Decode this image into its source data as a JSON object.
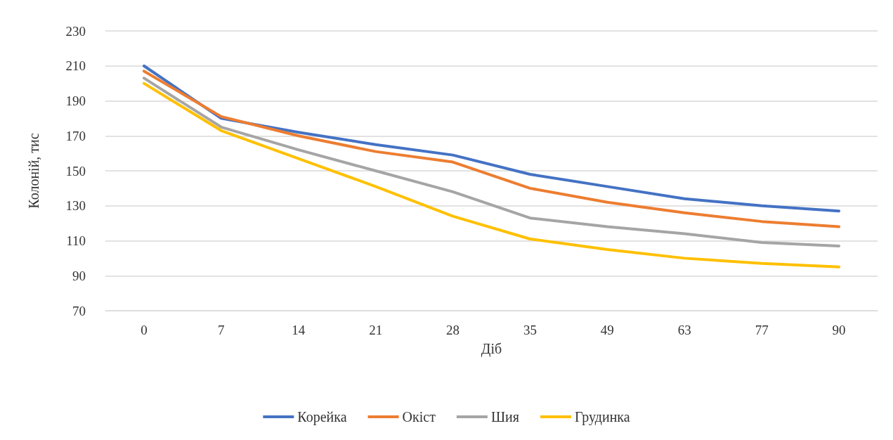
{
  "chart_data": {
    "type": "line",
    "xlabel": "Діб",
    "ylabel": "Колоній, тис",
    "categories": [
      "0",
      "7",
      "14",
      "21",
      "28",
      "35",
      "49",
      "63",
      "77",
      "90"
    ],
    "series": [
      {
        "name": "Корейка",
        "color": "#4472c4",
        "values": [
          210,
          180,
          172,
          165,
          159,
          148,
          141,
          134,
          130,
          127
        ]
      },
      {
        "name": "Окіст",
        "color": "#ed7d31",
        "values": [
          207,
          181,
          170,
          161,
          155,
          140,
          132,
          126,
          121,
          118
        ]
      },
      {
        "name": "Шия",
        "color": "#a5a5a5",
        "values": [
          203,
          175,
          162,
          150,
          138,
          123,
          118,
          114,
          109,
          107
        ]
      },
      {
        "name": "Грудинка",
        "color": "#ffc000",
        "values": [
          200,
          173,
          157,
          141,
          124,
          111,
          105,
          100,
          97,
          95
        ]
      }
    ],
    "ylim": [
      70,
      230
    ],
    "yticks": [
      70,
      90,
      110,
      130,
      150,
      170,
      190,
      210,
      230
    ],
    "grid": "y",
    "legend": "bottom",
    "marker": "none",
    "line_style": "solid"
  }
}
